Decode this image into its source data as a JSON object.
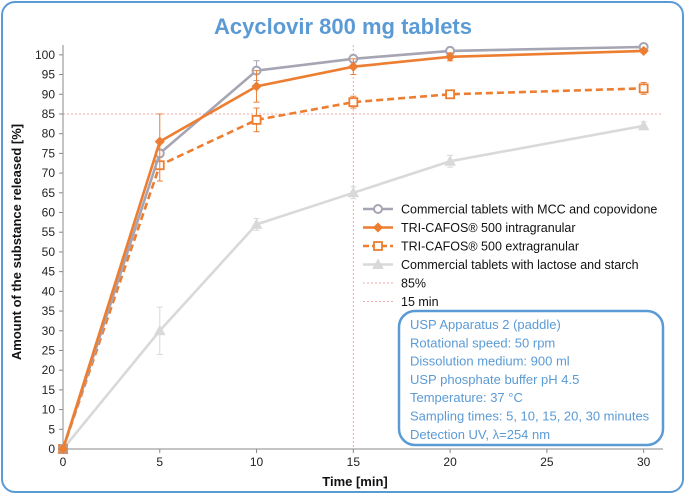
{
  "chart_data": {
    "type": "line",
    "title": "Acyclovir 800 mg tablets",
    "xlabel": "Time [min]",
    "ylabel": "Amount of the substance released [%]",
    "x": [
      0,
      5,
      10,
      15,
      20,
      30
    ],
    "xlim": [
      0,
      31
    ],
    "xticks": [
      0,
      5,
      10,
      15,
      20,
      25,
      30
    ],
    "ylim": [
      0,
      102.5
    ],
    "yticks": [
      0,
      5,
      10,
      15,
      20,
      25,
      30,
      35,
      40,
      45,
      50,
      55,
      60,
      65,
      70,
      75,
      80,
      85,
      90,
      95,
      100
    ],
    "series": [
      {
        "name": "Commercial tablets with MCC and copovidone",
        "color": "#a5a5b4",
        "dash": "solid",
        "marker": "circle",
        "values": [
          0,
          75,
          96,
          99,
          101,
          102
        ],
        "errors": [
          0,
          1,
          2.5,
          1,
          1,
          0.5
        ]
      },
      {
        "name": "TRI-CAFOS® 500 intragranular",
        "color": "#ed7d31",
        "dash": "solid",
        "marker": "diamond",
        "values": [
          0,
          78,
          92,
          97,
          99.5,
          101
        ],
        "errors": [
          0,
          7,
          4,
          2,
          1,
          0.5
        ]
      },
      {
        "name": "TRI-CAFOS® 500 extragranular",
        "color": "#ed7d31",
        "dash": "dashed",
        "marker": "square",
        "values": [
          0,
          72,
          83.5,
          88,
          90,
          91.5
        ],
        "errors": [
          0,
          4,
          3,
          1.5,
          1,
          1.5
        ]
      },
      {
        "name": "Commercial tablets with lactose and starch",
        "color": "#d9d9d9",
        "dash": "solid",
        "marker": "triangle",
        "values": [
          0,
          30,
          57,
          65,
          73,
          82
        ],
        "errors": [
          0,
          6,
          1.5,
          1.5,
          1.5,
          1
        ]
      }
    ],
    "reference_lines": [
      {
        "name": "85%",
        "axis": "y",
        "value": 85,
        "color": "#f4a6a6"
      },
      {
        "name": "15 min",
        "axis": "x",
        "value": 15,
        "color": "#f4a6a6"
      }
    ],
    "legend_position": "right",
    "info_box": {
      "lines": [
        "USP Apparatus 2 (paddle)",
        "Rotational speed: 50 rpm",
        "Dissolution medium: 900 ml",
        "USP phosphate buffer pH 4.5",
        "Temperature: 37 °C",
        "Sampling times: 5, 10, 15, 20, 30 minutes",
        "Detection UV, λ=254 nm"
      ]
    }
  }
}
